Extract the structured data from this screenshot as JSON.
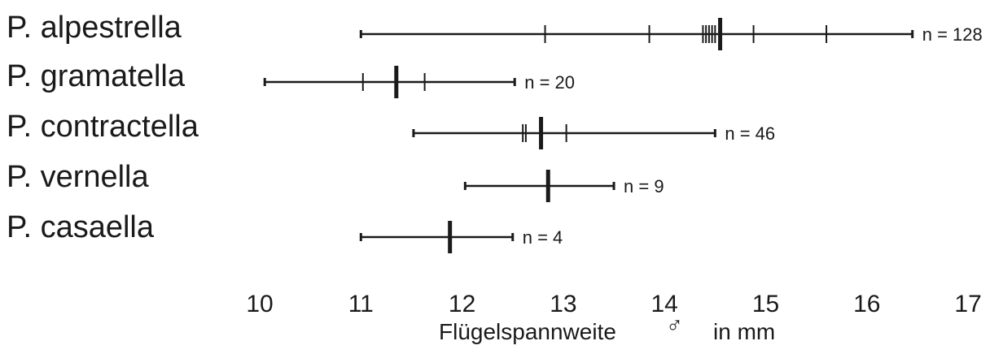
{
  "chart_data": {
    "type": "range",
    "xlabel": "Flügelspannweite ♂ in mm",
    "xlabel_parts": {
      "main": "Flügelspannweite",
      "symbol": "♂",
      "unit": "in mm"
    },
    "xlim": [
      10,
      17
    ],
    "xticks": [
      "10",
      "11",
      "12",
      "13",
      "14",
      "15",
      "16",
      "17"
    ],
    "grid": false,
    "series": [
      {
        "name": "P. alpestrella",
        "min": 11.0,
        "max": 16.45,
        "median": 14.55,
        "marks": [
          12.82,
          13.85,
          14.38,
          14.41,
          14.44,
          14.47,
          14.5,
          14.88,
          15.6
        ],
        "n_label": "n = 128"
      },
      {
        "name": "P. gramatella",
        "min": 10.05,
        "max": 12.52,
        "median": 11.35,
        "marks": [
          11.02,
          11.63
        ],
        "n_label": "n = 20"
      },
      {
        "name": "P. contractella",
        "min": 11.52,
        "max": 14.5,
        "median": 12.78,
        "marks": [
          12.6,
          12.63,
          13.03
        ],
        "n_label": "n = 46"
      },
      {
        "name": "P. vernella",
        "min": 12.03,
        "max": 13.5,
        "median": 12.85,
        "marks": [],
        "n_label": "n = 9"
      },
      {
        "name": "P. casaella",
        "min": 11.0,
        "max": 12.5,
        "median": 11.88,
        "marks": [],
        "n_label": "n = 4"
      }
    ]
  }
}
